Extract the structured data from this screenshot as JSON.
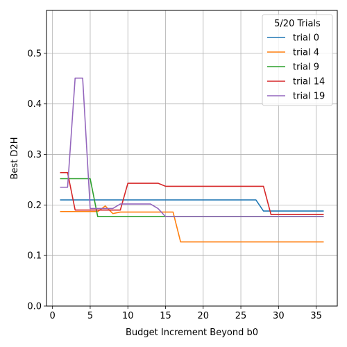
{
  "chart_data": {
    "type": "line",
    "xlabel": "Budget Increment Beyond b0",
    "ylabel": "Best D2H",
    "xlim": [
      -0.8,
      37.8
    ],
    "ylim": [
      0.0,
      0.585
    ],
    "xticks": [
      0,
      5,
      10,
      15,
      20,
      25,
      30,
      35
    ],
    "yticks": [
      0.0,
      0.1,
      0.2,
      0.3,
      0.4,
      0.5
    ],
    "ytick_labels": [
      "0.0",
      "0.1",
      "0.2",
      "0.3",
      "0.4",
      "0.5"
    ],
    "grid": true,
    "legend": {
      "title": "5/20 Trials",
      "placement": "top-right"
    },
    "series": [
      {
        "name": "trial 0",
        "color": "#1f77b4",
        "points": [
          [
            1,
            0.21
          ],
          [
            27,
            0.21
          ],
          [
            28,
            0.188
          ],
          [
            36,
            0.188
          ]
        ]
      },
      {
        "name": "trial 4",
        "color": "#ff7f0e",
        "points": [
          [
            1,
            0.187
          ],
          [
            6,
            0.187
          ],
          [
            7,
            0.198
          ],
          [
            8,
            0.183
          ],
          [
            9,
            0.186
          ],
          [
            16,
            0.186
          ],
          [
            17,
            0.127
          ],
          [
            36,
            0.127
          ]
        ]
      },
      {
        "name": "trial 9",
        "color": "#2ca02c",
        "points": [
          [
            1,
            0.252
          ],
          [
            5,
            0.252
          ],
          [
            6,
            0.177
          ],
          [
            36,
            0.177
          ]
        ]
      },
      {
        "name": "trial 14",
        "color": "#d62728",
        "points": [
          [
            1,
            0.264
          ],
          [
            2,
            0.264
          ],
          [
            3,
            0.19
          ],
          [
            9,
            0.19
          ],
          [
            10,
            0.243
          ],
          [
            14,
            0.243
          ],
          [
            15,
            0.237
          ],
          [
            28,
            0.237
          ],
          [
            29,
            0.181
          ],
          [
            36,
            0.181
          ]
        ]
      },
      {
        "name": "trial 19",
        "color": "#9467bd",
        "points": [
          [
            1,
            0.235
          ],
          [
            2,
            0.235
          ],
          [
            3,
            0.451
          ],
          [
            4,
            0.451
          ],
          [
            5,
            0.193
          ],
          [
            8,
            0.193
          ],
          [
            9,
            0.202
          ],
          [
            13,
            0.202
          ],
          [
            14,
            0.193
          ],
          [
            15,
            0.177
          ],
          [
            36,
            0.177
          ]
        ]
      }
    ]
  }
}
